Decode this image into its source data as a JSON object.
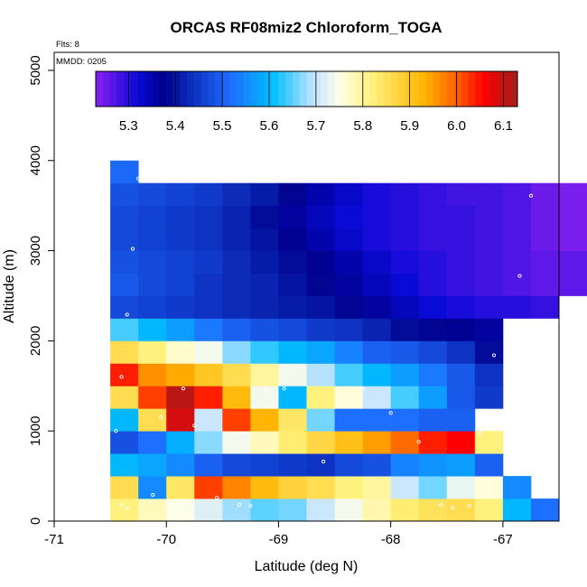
{
  "chart_data": {
    "type": "heatmap",
    "title": "ORCAS RF08miz2 Chloroform_TOGA",
    "xlabel": "Latitude (deg N)",
    "ylabel": "Altitude (m)",
    "flights_label": "Flts: 8",
    "date_label": "MMDD: 0205",
    "xlim": [
      -71,
      -66.5
    ],
    "ylim": [
      0,
      5200
    ],
    "xticks": [
      -71,
      -70,
      -69,
      -68,
      -67
    ],
    "yticks": [
      0,
      1000,
      2000,
      3000,
      4000,
      5000
    ],
    "cell_lat_width": 0.25,
    "cell_alt_height": 250,
    "colorbar": {
      "min": 5.23,
      "max": 6.13,
      "ticks": [
        5.3,
        5.4,
        5.5,
        5.6,
        5.7,
        5.8,
        5.9,
        6.0,
        6.1
      ]
    },
    "rows": [
      {
        "alt": 0,
        "lat0": -70.5,
        "values": [
          5.82,
          5.78,
          5.75,
          5.72,
          5.68,
          5.65,
          5.66,
          5.7,
          5.74,
          5.79,
          5.83,
          5.85,
          5.86,
          5.82,
          5.6,
          5.52
        ]
      },
      {
        "alt": 250,
        "lat0": -70.5,
        "values": [
          5.86,
          5.55,
          5.84,
          6.02,
          5.97,
          5.92,
          5.88,
          5.86,
          5.82,
          5.8,
          5.7,
          5.66,
          5.73,
          5.76,
          5.55
        ]
      },
      {
        "alt": 500,
        "lat0": -70.5,
        "values": [
          5.6,
          5.58,
          5.55,
          5.5,
          5.47,
          5.46,
          5.45,
          5.44,
          5.47,
          5.48,
          5.54,
          5.56,
          5.57,
          5.5
        ]
      },
      {
        "alt": 750,
        "lat0": -70.5,
        "values": [
          5.48,
          5.52,
          5.59,
          5.67,
          5.74,
          5.78,
          5.83,
          5.87,
          5.91,
          5.95,
          5.99,
          6.04,
          6.06,
          5.82
        ]
      },
      {
        "alt": 1000,
        "lat0": -70.5,
        "values": [
          5.6,
          5.86,
          6.09,
          5.7,
          6.02,
          5.93,
          5.84,
          5.66,
          5.52,
          5.52,
          5.52,
          5.5,
          5.5
        ]
      },
      {
        "alt": 1250,
        "lat0": -70.5,
        "values": [
          5.86,
          6.02,
          6.11,
          6.04,
          5.92,
          5.74,
          5.6,
          5.82,
          5.76,
          5.7,
          5.64,
          5.57,
          5.49,
          5.45
        ]
      },
      {
        "alt": 1500,
        "lat0": -70.5,
        "values": [
          6.04,
          5.96,
          5.94,
          5.9,
          5.86,
          5.8,
          5.74,
          5.69,
          5.64,
          5.6,
          5.57,
          5.53,
          5.49,
          5.44
        ]
      },
      {
        "alt": 1750,
        "lat0": -70.5,
        "values": [
          5.86,
          5.82,
          5.77,
          5.74,
          5.67,
          5.63,
          5.6,
          5.58,
          5.54,
          5.5,
          5.49,
          5.47,
          5.44,
          5.39
        ]
      },
      {
        "alt": 2000,
        "lat0": -70.5,
        "values": [
          5.64,
          5.6,
          5.57,
          5.53,
          5.5,
          5.48,
          5.47,
          5.45,
          5.44,
          5.42,
          5.39,
          5.38,
          5.37,
          5.36
        ]
      },
      {
        "alt": 2250,
        "lat0": -70.5,
        "values": [
          5.47,
          5.46,
          5.45,
          5.44,
          5.43,
          5.42,
          5.41,
          5.4,
          5.38,
          5.36,
          5.34,
          5.32,
          5.31,
          5.3,
          5.3,
          5.29
        ]
      },
      {
        "alt": 2500,
        "lat0": -70.5,
        "values": [
          5.49,
          5.47,
          5.46,
          5.44,
          5.43,
          5.42,
          5.4,
          5.38,
          5.36,
          5.34,
          5.32,
          5.3,
          5.29,
          5.28,
          5.27,
          5.26,
          5.26
        ]
      },
      {
        "alt": 2750,
        "lat0": -70.5,
        "values": [
          5.48,
          5.47,
          5.46,
          5.45,
          5.43,
          5.41,
          5.39,
          5.37,
          5.35,
          5.33,
          5.31,
          5.3,
          5.29,
          5.28,
          5.27,
          5.26,
          5.26
        ]
      },
      {
        "alt": 3000,
        "lat0": -70.5,
        "values": [
          5.47,
          5.46,
          5.45,
          5.44,
          5.42,
          5.4,
          5.37,
          5.35,
          5.33,
          5.31,
          5.3,
          5.29,
          5.29,
          5.28,
          5.27,
          5.25,
          5.24
        ]
      },
      {
        "alt": 3250,
        "lat0": -70.5,
        "values": [
          5.47,
          5.46,
          5.45,
          5.44,
          5.42,
          5.39,
          5.36,
          5.34,
          5.32,
          5.31,
          5.3,
          5.29,
          5.29,
          5.28,
          5.27,
          5.25,
          5.24
        ]
      },
      {
        "alt": 3500,
        "lat0": -70.5,
        "values": [
          5.48,
          5.47,
          5.46,
          5.45,
          5.43,
          5.41,
          5.38,
          5.35,
          5.33,
          5.31,
          5.3,
          5.29,
          5.28,
          5.28,
          5.27,
          5.25,
          5.24
        ]
      },
      {
        "alt": 3750,
        "lat0": -70.5,
        "values": [
          5.51
        ]
      }
    ],
    "sample_points": [
      [
        -70.25,
        3800
      ],
      [
        -70.3,
        3020
      ],
      [
        -70.35,
        2290
      ],
      [
        -70.4,
        1600
      ],
      [
        -69.85,
        1470
      ],
      [
        -70.45,
        1000
      ],
      [
        -70.05,
        1150
      ],
      [
        -69.75,
        1060
      ],
      [
        -69.12,
        1460
      ],
      [
        -68.95,
        1470
      ],
      [
        -68.25,
        1470
      ],
      [
        -68.0,
        1200
      ],
      [
        -67.75,
        880
      ],
      [
        -67.2,
        980
      ],
      [
        -67.08,
        1840
      ],
      [
        -68.6,
        660
      ],
      [
        -70.12,
        290
      ],
      [
        -69.55,
        260
      ],
      [
        -69.35,
        180
      ],
      [
        -69.25,
        170
      ],
      [
        -70.4,
        180
      ],
      [
        -70.35,
        140
      ],
      [
        -67.55,
        180
      ],
      [
        -67.45,
        150
      ],
      [
        -67.3,
        170
      ],
      [
        -66.85,
        2720
      ],
      [
        -66.75,
        3610
      ]
    ]
  }
}
